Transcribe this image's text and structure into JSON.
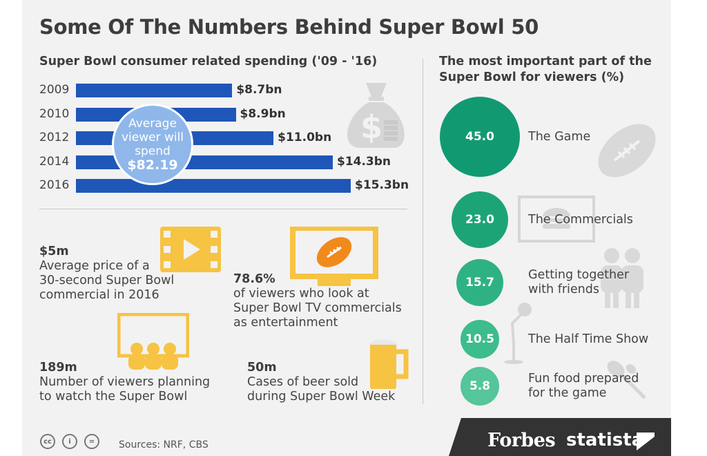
{
  "title": "Some Of The Numbers Behind Super Bowl 50",
  "spending": {
    "heading": "Super Bowl consumer related spending ('09 - '16)",
    "avg_label": [
      "Average",
      "viewer will",
      "spend"
    ],
    "avg_value": "$82.19"
  },
  "chart_data": [
    {
      "type": "bar",
      "orientation": "horizontal",
      "title": "Super Bowl consumer related spending ('09 - '16)",
      "categories": [
        "2009",
        "2010",
        "2012",
        "2014",
        "2016"
      ],
      "values": [
        8.7,
        8.9,
        11.0,
        14.3,
        15.3
      ],
      "value_labels": [
        "$8.7bn",
        "$8.9bn",
        "$11.0bn",
        "$14.3bn",
        "$15.3bn"
      ],
      "unit": "bn USD",
      "xlim": [
        0,
        15.3
      ]
    },
    {
      "type": "bubble",
      "title": "The most important part of the Super Bowl for viewers (%)",
      "categories": [
        "The Game",
        "The Commercials",
        "Getting together with friends",
        "The Half Time Show",
        "Fun food prepared for the game"
      ],
      "category_lines": [
        [
          "The Game"
        ],
        [
          "The Commercials"
        ],
        [
          "Getting together",
          "with friends"
        ],
        [
          "The Half Time Show"
        ],
        [
          "Fun food prepared",
          "for the game"
        ]
      ],
      "values": [
        45.0,
        23.0,
        15.7,
        10.5,
        5.8
      ],
      "value_labels": [
        "45.0",
        "23.0",
        "15.7",
        "10.5",
        "5.8"
      ],
      "colors": [
        "#119a72",
        "#1ca477",
        "#2fb283",
        "#3dbc8c",
        "#54c69a"
      ]
    }
  ],
  "viewers_heading": "The most important part of the Super Bowl for viewers (%)",
  "stats": [
    {
      "num": "$5m",
      "text": [
        "Average price of a",
        "30-second Super Bowl",
        "commercial in 2016"
      ],
      "icon": "video-icon"
    },
    {
      "num": "78.6%",
      "text": [
        "of viewers who look at",
        "Super Bowl TV commercials",
        "as entertainment"
      ],
      "icon": "tv-football-icon"
    },
    {
      "num": "189m",
      "text": [
        "Number of viewers planning",
        "to watch the Super Bowl"
      ],
      "icon": "audience-icon"
    },
    {
      "num": "50m",
      "text": [
        "Cases of beer sold",
        "during Super Bowl Week"
      ],
      "icon": "beer-icon"
    }
  ],
  "footer": {
    "sources": "Sources: NRF, CBS",
    "cc_icons": [
      "cc",
      "i",
      "="
    ],
    "forbes": "Forbes",
    "statista": "statista"
  },
  "colors": {
    "bar": "#1f57b8",
    "icon_yellow": "#f6c342",
    "icon_gray": "#d6d6d6"
  }
}
